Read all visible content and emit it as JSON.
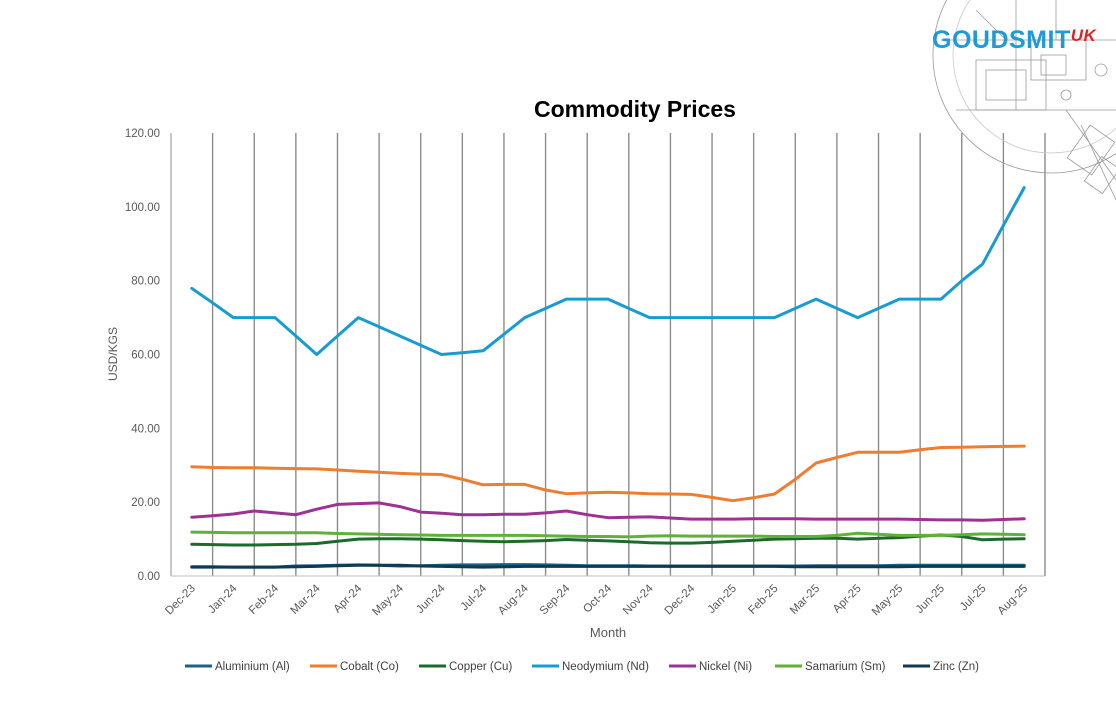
{
  "brand": {
    "name": "GOUDSMIT",
    "suffix": "UK",
    "color": "#1f9ad6",
    "suffix_color": "#d8232a"
  },
  "chart_data": {
    "type": "line",
    "title": "Commodity Prices",
    "xlabel": "Month",
    "ylabel": "USD/KGS",
    "ylim": [
      0,
      120
    ],
    "yticks": [
      "0.00",
      "20.00",
      "40.00",
      "60.00",
      "80.00",
      "100.00",
      "120.00"
    ],
    "ytick_values": [
      0,
      20,
      40,
      60,
      80,
      100,
      120
    ],
    "grid": "vertical",
    "legend_position": "bottom",
    "categories": [
      "Dec-23",
      "Jan-24",
      "Feb-24",
      "Mar-24",
      "Apr-24",
      "May-24",
      "Jun-24",
      "Jul-24",
      "Aug-24",
      "Sep-24",
      "Oct-24",
      "Nov-24",
      "Dec-24",
      "Jan-25",
      "Feb-25",
      "Mar-25",
      "Apr-25",
      "May-25",
      "Jun-25",
      "Jul-25",
      "Aug-25"
    ],
    "x": [
      0,
      0.5,
      1,
      1.5,
      2,
      2.5,
      3,
      3.5,
      4,
      4.5,
      5,
      5.5,
      6,
      6.5,
      7,
      7.5,
      8,
      8.5,
      9,
      9.5,
      10,
      10.5,
      11,
      11.5,
      12,
      12.5,
      13,
      13.5,
      14,
      14.5,
      15,
      15.5,
      16,
      16.5,
      17,
      17.5,
      18,
      18.5,
      19,
      19.5,
      20
    ],
    "series": [
      {
        "name": "Aluminium (Al)",
        "color": "#1e5f87",
        "values": [
          2.5,
          2.5,
          2.4,
          2.4,
          2.4,
          2.7,
          2.8,
          2.9,
          3.0,
          2.9,
          2.7,
          2.8,
          2.9,
          3.0,
          3.0,
          3.1,
          3.1,
          3.0,
          2.9,
          2.8,
          2.8,
          2.8,
          2.7,
          2.7,
          2.7,
          2.7,
          2.7,
          2.7,
          2.7,
          2.7,
          2.8,
          2.8,
          2.8,
          2.8,
          2.9,
          2.9,
          2.9,
          2.9,
          2.9,
          2.9,
          2.9
        ]
      },
      {
        "name": "Cobalt (Co)",
        "color": "#ed7d31",
        "values": [
          29.6,
          29.4,
          29.3,
          29.3,
          29.2,
          29.1,
          29.0,
          28.7,
          28.4,
          28.1,
          27.8,
          27.6,
          27.5,
          26.2,
          24.7,
          24.8,
          24.8,
          23.3,
          22.3,
          22.5,
          22.7,
          22.5,
          22.3,
          22.2,
          22.1,
          21.3,
          20.4,
          21.2,
          22.2,
          26.2,
          30.6,
          32.1,
          33.5,
          33.5,
          33.5,
          34.2,
          34.8,
          34.9,
          35.0,
          35.1,
          35.2
        ]
      },
      {
        "name": "Copper (Cu)",
        "color": "#1e6a2c",
        "values": [
          8.6,
          8.5,
          8.4,
          8.4,
          8.5,
          8.6,
          8.8,
          9.4,
          10.0,
          10.1,
          10.1,
          10.0,
          9.8,
          9.6,
          9.4,
          9.3,
          9.4,
          9.6,
          9.9,
          9.7,
          9.5,
          9.3,
          9.0,
          8.9,
          8.9,
          9.1,
          9.4,
          9.7,
          10.0,
          10.1,
          10.2,
          10.2,
          10.0,
          10.2,
          10.4,
          10.8,
          11.1,
          10.7,
          9.8,
          10.0,
          10.1
        ]
      },
      {
        "name": "Neodymium (Nd)",
        "color": "#1a9bd0",
        "values": [
          77.9,
          74.0,
          70.0,
          70.0,
          70.0,
          65.0,
          60.0,
          65.0,
          70.0,
          67.5,
          65.0,
          62.5,
          60.0,
          60.5,
          61.0,
          65.5,
          70.0,
          72.5,
          75.0,
          75.0,
          75.0,
          72.5,
          70.0,
          70.0,
          70.0,
          70.0,
          70.0,
          70.0,
          70.0,
          72.5,
          75.0,
          72.5,
          70.0,
          72.5,
          75.0,
          75.0,
          75.0,
          80.0,
          84.5,
          95.0,
          105.2
        ]
      },
      {
        "name": "Nickel (Ni)",
        "color": "#9b3294",
        "values": [
          15.9,
          16.3,
          16.8,
          17.6,
          17.1,
          16.6,
          18.1,
          19.4,
          19.6,
          19.8,
          18.8,
          17.3,
          17.0,
          16.6,
          16.6,
          16.7,
          16.7,
          17.1,
          17.6,
          16.6,
          15.8,
          15.9,
          16.0,
          15.7,
          15.4,
          15.4,
          15.4,
          15.5,
          15.5,
          15.5,
          15.4,
          15.4,
          15.4,
          15.4,
          15.4,
          15.3,
          15.2,
          15.2,
          15.1,
          15.3,
          15.5
        ]
      },
      {
        "name": "Samarium (Sm)",
        "color": "#5fb13a",
        "values": [
          11.9,
          11.8,
          11.7,
          11.7,
          11.7,
          11.7,
          11.7,
          11.5,
          11.4,
          11.3,
          11.2,
          11.1,
          11.0,
          11.0,
          11.0,
          11.0,
          11.0,
          10.9,
          10.8,
          10.7,
          10.7,
          10.6,
          10.8,
          10.9,
          10.8,
          10.8,
          10.8,
          10.8,
          10.7,
          10.7,
          10.7,
          11.0,
          11.6,
          11.3,
          11.0,
          11.0,
          11.0,
          11.2,
          11.4,
          11.3,
          11.2
        ]
      },
      {
        "name": "Zinc (Zn)",
        "color": "#0f3a51",
        "values": [
          2.4,
          2.4,
          2.4,
          2.4,
          2.4,
          2.5,
          2.6,
          2.8,
          2.9,
          2.9,
          2.9,
          2.7,
          2.6,
          2.5,
          2.4,
          2.5,
          2.6,
          2.6,
          2.6,
          2.6,
          2.6,
          2.6,
          2.6,
          2.6,
          2.6,
          2.6,
          2.6,
          2.6,
          2.6,
          2.5,
          2.5,
          2.5,
          2.5,
          2.5,
          2.5,
          2.6,
          2.6,
          2.6,
          2.6,
          2.6,
          2.6
        ]
      }
    ]
  }
}
